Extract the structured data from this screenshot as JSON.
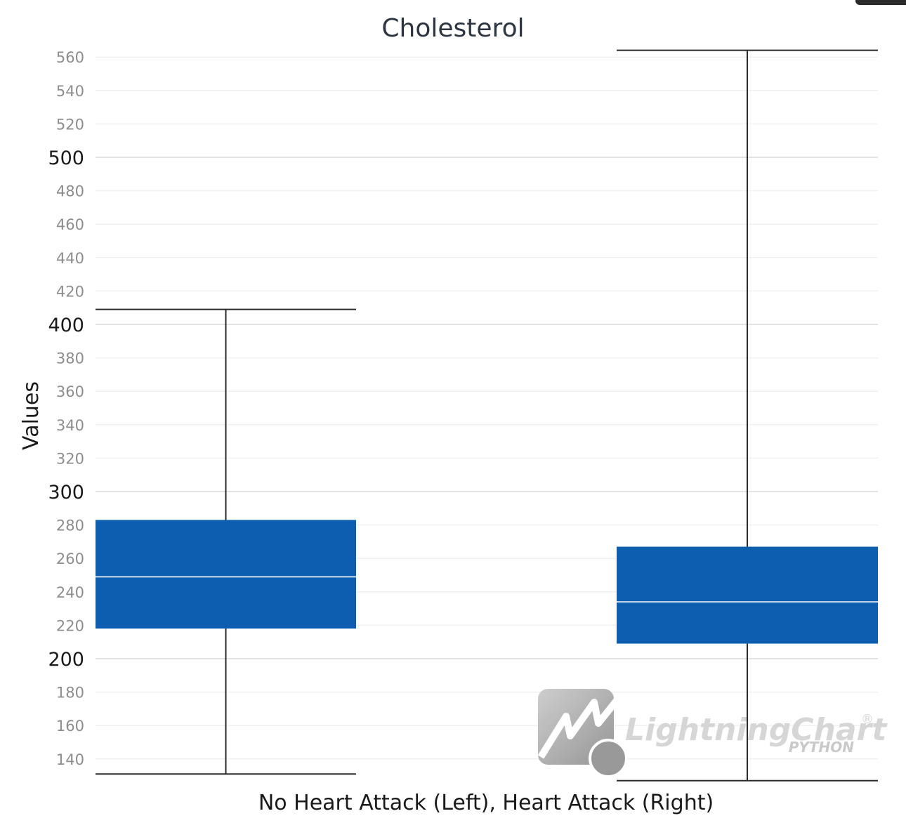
{
  "chart_data": {
    "type": "box",
    "title": "Cholesterol",
    "xlabel": "No Heart Attack (Left), Heart Attack (Right)",
    "ylabel": "Values",
    "ylim": [
      131,
      564
    ],
    "major_ticks": [
      200,
      300,
      400,
      500
    ],
    "minor_ticks": [
      140,
      160,
      180,
      220,
      240,
      260,
      280,
      320,
      340,
      360,
      380,
      420,
      440,
      460,
      480,
      520,
      540,
      560
    ],
    "grid": true,
    "box_color": "#0d5db1",
    "median_color": "#cfe0f3",
    "whisker_color": "#2a2a2a",
    "boxes": [
      {
        "min": 131,
        "q1": 218,
        "median": 249,
        "q3": 283,
        "max": 409
      },
      {
        "min": 127,
        "q1": 209,
        "median": 234,
        "q3": 267,
        "max": 564
      }
    ]
  },
  "watermark": {
    "brand": "LightningChart",
    "registered": "®",
    "sub": "PYTHON"
  }
}
